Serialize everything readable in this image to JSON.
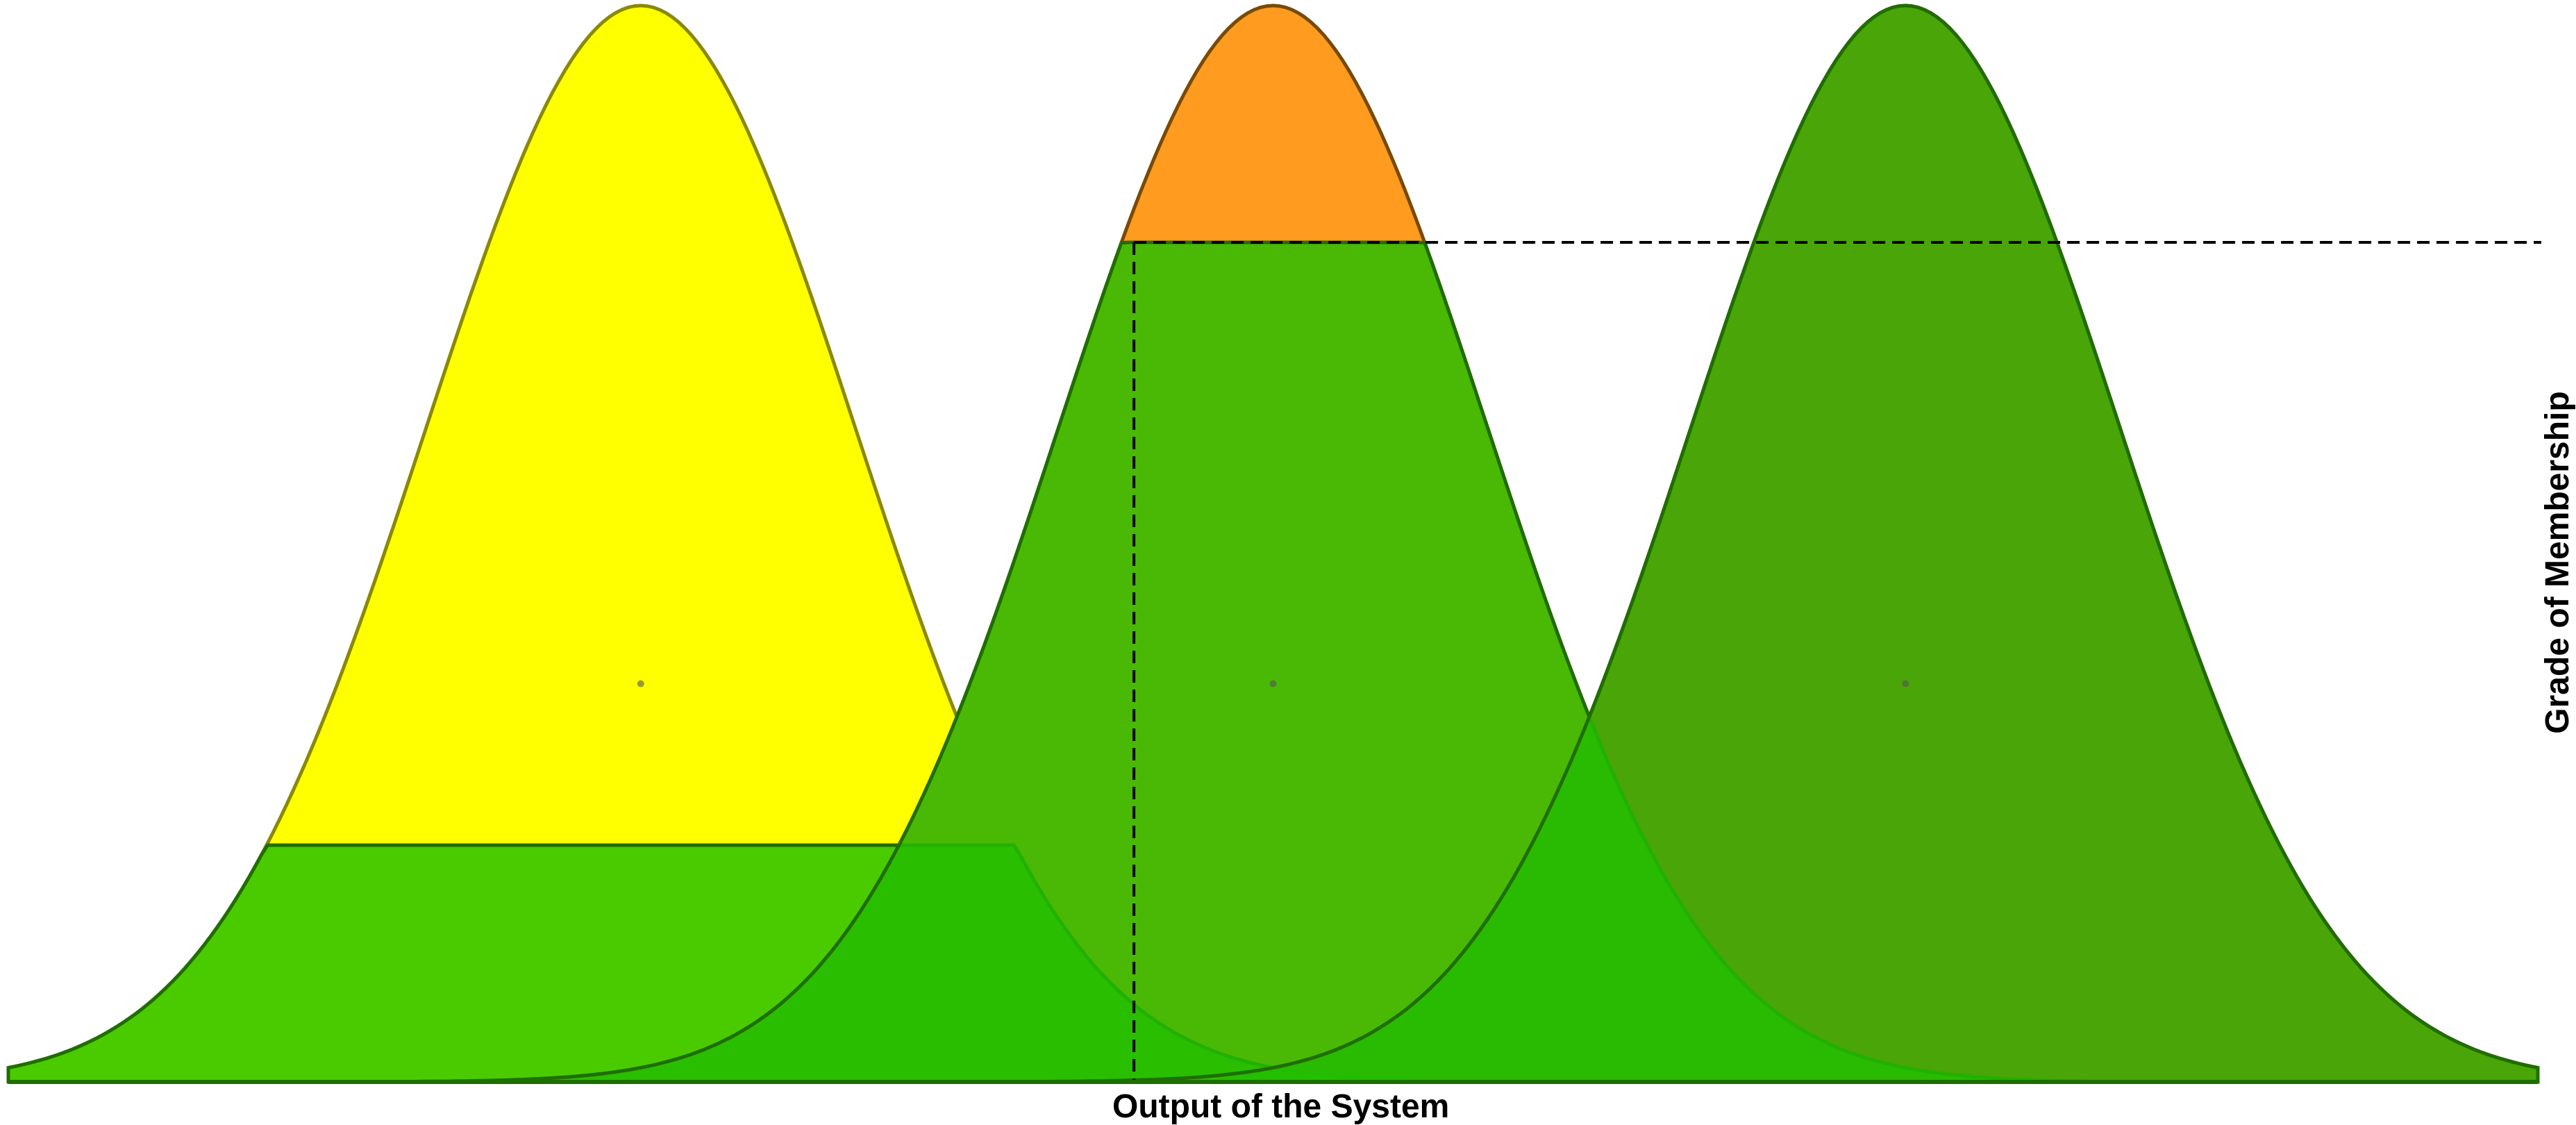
{
  "diagram": {
    "x_label": "Output of the System",
    "y_label": "Grade of Membership",
    "mean_marker": "dot",
    "guide_style": "dashed",
    "colors": {
      "low": "#ffff00",
      "medium": "#ff9b1f",
      "high": "#ff3030",
      "clipped_output": "#22c000",
      "axis": "#000000"
    },
    "membership_functions": [
      {
        "id": "low",
        "color": "#ffff00",
        "outline": "#8a8a00",
        "peak": 1.0,
        "center": 0.25,
        "spread": 0.085
      },
      {
        "id": "medium",
        "color": "#ff9b1f",
        "outline": "#7a4a00",
        "peak": 1.0,
        "center": 0.5,
        "spread": 0.085
      },
      {
        "id": "high",
        "color": "#ff3030",
        "outline": "#9a0000",
        "peak": 1.0,
        "center": 0.75,
        "spread": 0.085
      }
    ],
    "cut_levels": {
      "low": 0.22,
      "medium": 0.78,
      "high": 1.0
    },
    "guide": {
      "level": 0.78,
      "x_start": 0.445
    },
    "domain": [
      0,
      1
    ]
  }
}
